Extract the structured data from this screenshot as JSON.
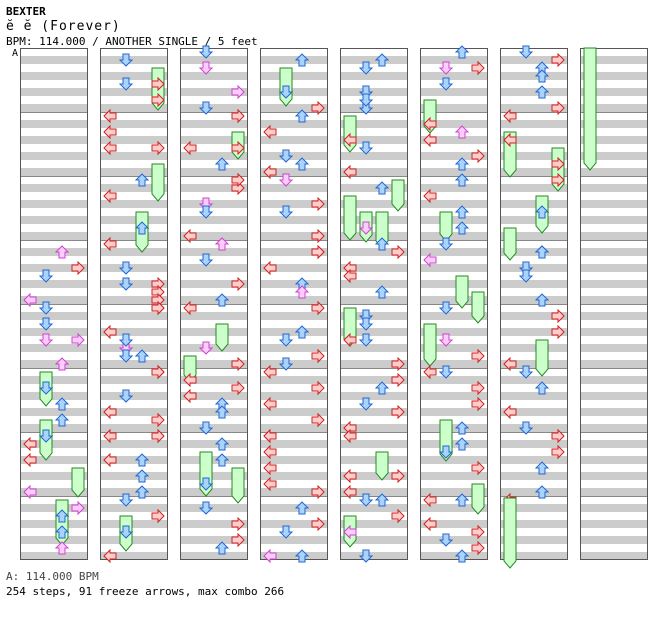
{
  "song": {
    "artist": "BEXTER",
    "title": "ĕ  ĕ   (Forever)",
    "info_line": "BPM: 114.000 / ANOTHER SINGLE / 5 feet",
    "bpm_marker": "A"
  },
  "footer": {
    "bpm_change": "A: 114.000 BPM",
    "summary": "254 steps, 91 freeze arrows, max combo 266"
  },
  "colors": {
    "stripe_gray": "#cccccc",
    "left_right_arrow": "#ffcccc",
    "left_right_border": "#cc2222",
    "up_down_arrow": "#aad4ff",
    "up_down_border": "#2266cc",
    "pink_arrow": "#ffccff",
    "pink_border": "#cc44cc",
    "freeze_fill": "#ccffcc",
    "freeze_border": "#228822"
  },
  "chart_meta": {
    "columns": 8,
    "measures_per_column": 8,
    "lanes": [
      "left",
      "down",
      "up",
      "right"
    ]
  }
}
